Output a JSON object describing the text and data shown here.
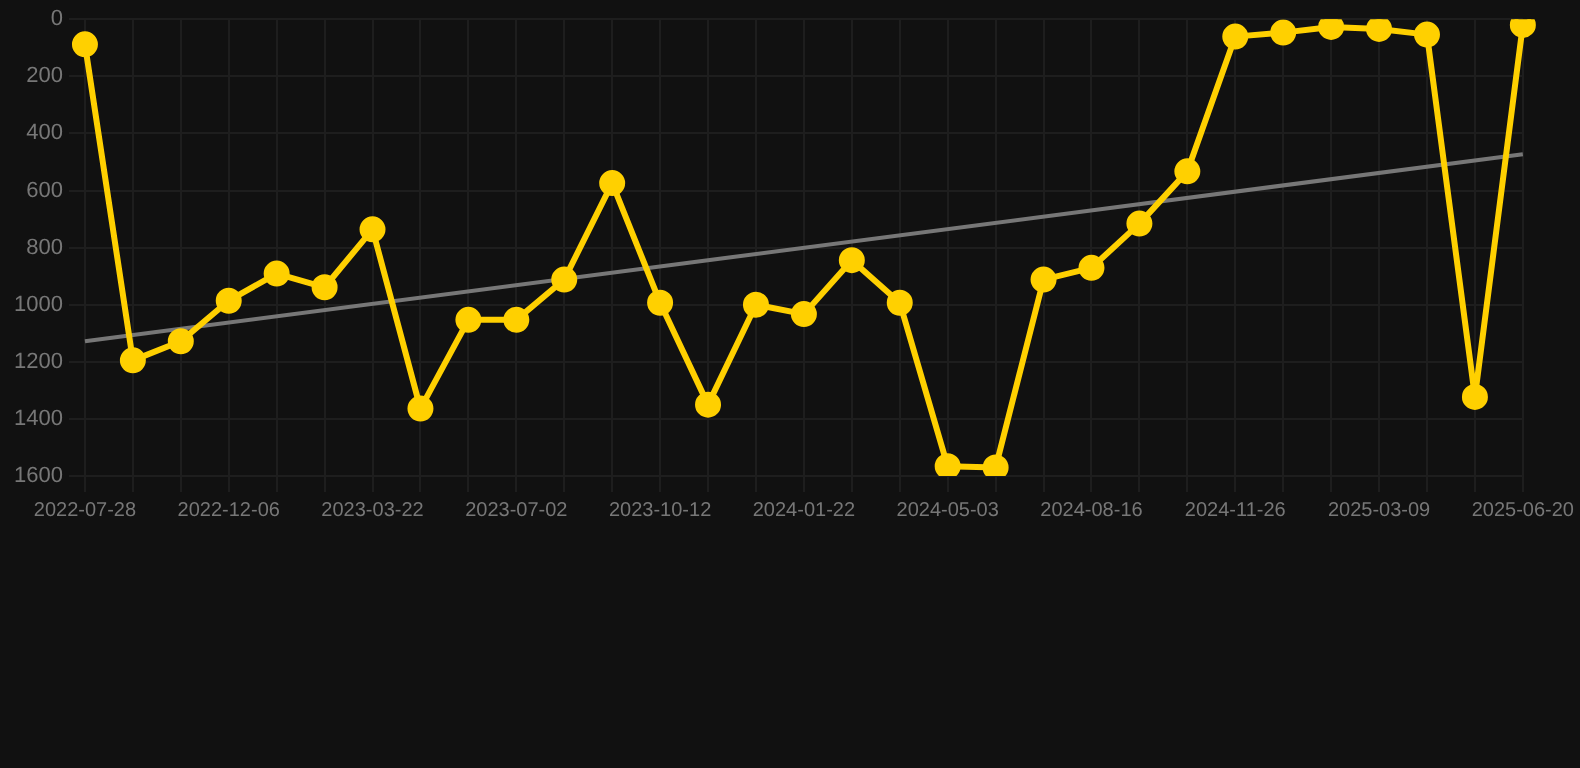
{
  "chart_data": {
    "type": "line",
    "categories": [
      "2022-07-28",
      null,
      null,
      "2022-12-06",
      null,
      null,
      "2023-03-22",
      null,
      null,
      "2023-07-02",
      null,
      null,
      "2023-10-12",
      null,
      null,
      "2024-01-22",
      null,
      null,
      "2024-05-03",
      null,
      null,
      "2024-08-16",
      null,
      null,
      "2024-11-26",
      null,
      null,
      "2025-03-09",
      null,
      null,
      "2025-06-20"
    ],
    "series": [
      {
        "color": "#ffd000",
        "values": [
          88,
          1195,
          1128,
          986,
          891,
          939,
          736,
          1364,
          1053,
          1053,
          912,
          574,
          993,
          1350,
          1000,
          1033,
          844,
          993,
          1566,
          1570,
          912,
          871,
          716,
          533,
          61,
          47,
          27,
          34,
          54,
          1323,
          20
        ]
      },
      {
        "type": "line",
        "color": "#777777",
        "marker": "none",
        "values": [
          1128,
          null,
          null,
          null,
          null,
          null,
          null,
          null,
          null,
          null,
          null,
          null,
          null,
          null,
          null,
          null,
          null,
          null,
          null,
          null,
          null,
          null,
          null,
          null,
          null,
          null,
          null,
          null,
          null,
          null,
          473
        ]
      }
    ],
    "ylim": [
      1600,
      0
    ],
    "yticks": [
      0,
      200,
      400,
      600,
      800,
      1000,
      1200,
      1400,
      1600
    ],
    "grid": true,
    "marker": "circle"
  }
}
